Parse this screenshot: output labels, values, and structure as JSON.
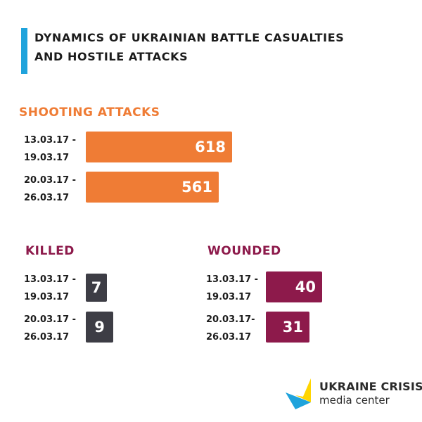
{
  "title_line1": "DYNAMICS OF UKRAINIAN BATTLE CASUALTIES",
  "title_line2": "AND HOSTILE ATTACKS",
  "colors": {
    "title_accent": "#1fa3dc",
    "shooting": "#ef7c35",
    "killed_bar": "#3d3d45",
    "wounded": "#8d1a4b",
    "killed_title": "#8d1a4b"
  },
  "chart_data": [
    {
      "type": "bar",
      "orientation": "horizontal",
      "title": "SHOOTING ATTACKS",
      "categories": [
        {
          "line1": "13.03.17 -",
          "line2": "19.03.17"
        },
        {
          "line1": "20.03.17 -",
          "line2": "26.03.17"
        }
      ],
      "values": [
        618,
        561
      ]
    },
    {
      "type": "bar",
      "orientation": "horizontal",
      "title": "KILLED",
      "categories": [
        {
          "line1": "13.03.17 -",
          "line2": "19.03.17"
        },
        {
          "line1": "20.03.17 -",
          "line2": "26.03.17"
        }
      ],
      "values": [
        7,
        9
      ]
    },
    {
      "type": "bar",
      "orientation": "horizontal",
      "title": "WOUNDED",
      "categories": [
        {
          "line1": "13.03.17 -",
          "line2": "19.03.17"
        },
        {
          "line1": "20.03.17-",
          "line2": "26.03.17"
        }
      ],
      "values": [
        40,
        31
      ]
    }
  ],
  "logo": {
    "name": "UKRAINE CRISIS",
    "sub": "media center"
  }
}
